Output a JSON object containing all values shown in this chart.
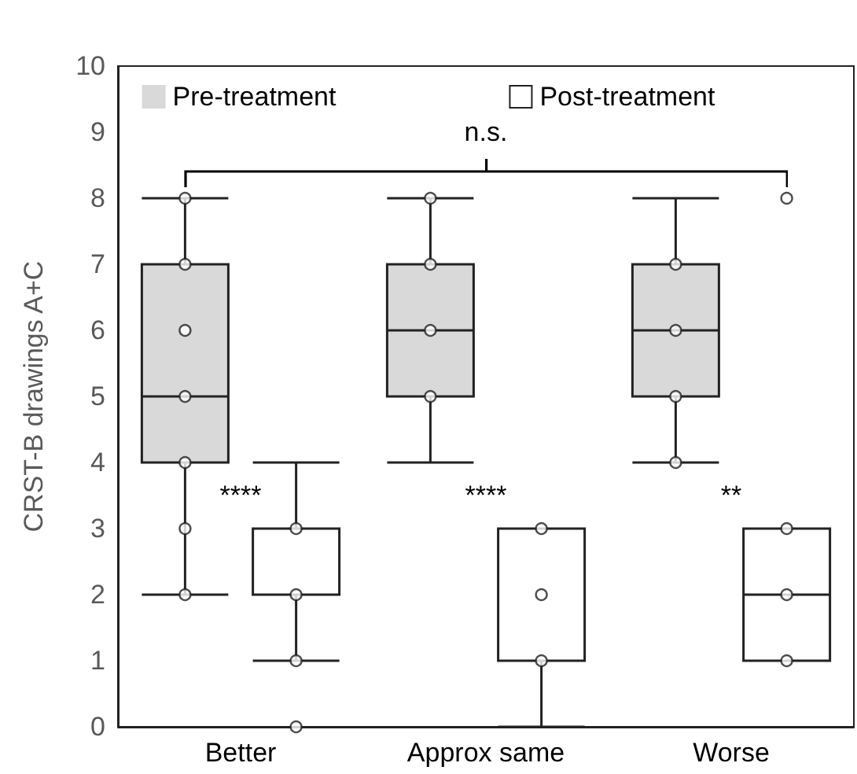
{
  "chart_data": {
    "type": "box",
    "ylabel": "CRST-B drawings A+C",
    "categories": [
      "Better",
      "Approx same",
      "Worse"
    ],
    "ylim": [
      0,
      10
    ],
    "yticks": [
      0,
      1,
      2,
      3,
      4,
      5,
      6,
      7,
      8,
      9,
      10
    ],
    "grid": false,
    "legend": "top",
    "marker": "circle",
    "series": [
      {
        "name": "Pre-treatment",
        "color": "#d9d9d9",
        "boxes": [
          {
            "low": 2,
            "q1": 4,
            "median": 5,
            "q3": 7,
            "high": 8
          },
          {
            "low": 4,
            "q1": 5,
            "median": 6,
            "q3": 7,
            "high": 8
          },
          {
            "low": 4,
            "q1": 5,
            "median": 6,
            "q3": 7,
            "high": 8
          }
        ]
      },
      {
        "name": "Post-treatment",
        "color": "#ffffff",
        "boxes": [
          {
            "low": 1,
            "q1": 2,
            "median": 2,
            "q3": 3,
            "high": 4,
            "outliers": [
              0
            ]
          },
          {
            "low": 0,
            "q1": 1,
            "median": 1,
            "q3": 3,
            "high": 3
          },
          {
            "low": 1,
            "q1": 1,
            "median": 2,
            "q3": 3,
            "high": 3,
            "outliers": [
              8
            ]
          }
        ]
      },
      {
        "type": "scatter",
        "color": "#ffffff",
        "x": [
          "Better",
          "Better",
          "Better",
          "Better",
          "Better",
          "Better",
          "Better",
          "Approx same",
          "Approx same",
          "Approx same",
          "Approx same",
          "Worse",
          "Worse",
          "Worse",
          "Worse"
        ],
        "values": [
          8,
          7,
          6,
          5,
          4,
          3,
          2,
          8,
          7,
          6,
          5,
          7,
          6,
          5,
          4
        ]
      },
      {
        "type": "scatter",
        "color": "#ffffff",
        "x": [
          "Better",
          "Better",
          "Better",
          "Approx same",
          "Approx same",
          "Approx same",
          "Worse",
          "Worse",
          "Worse"
        ],
        "values": [
          3,
          2,
          1,
          3,
          2,
          1,
          3,
          2,
          1
        ]
      }
    ],
    "annotations": [
      "****",
      "****",
      "**",
      "n.s."
    ]
  }
}
